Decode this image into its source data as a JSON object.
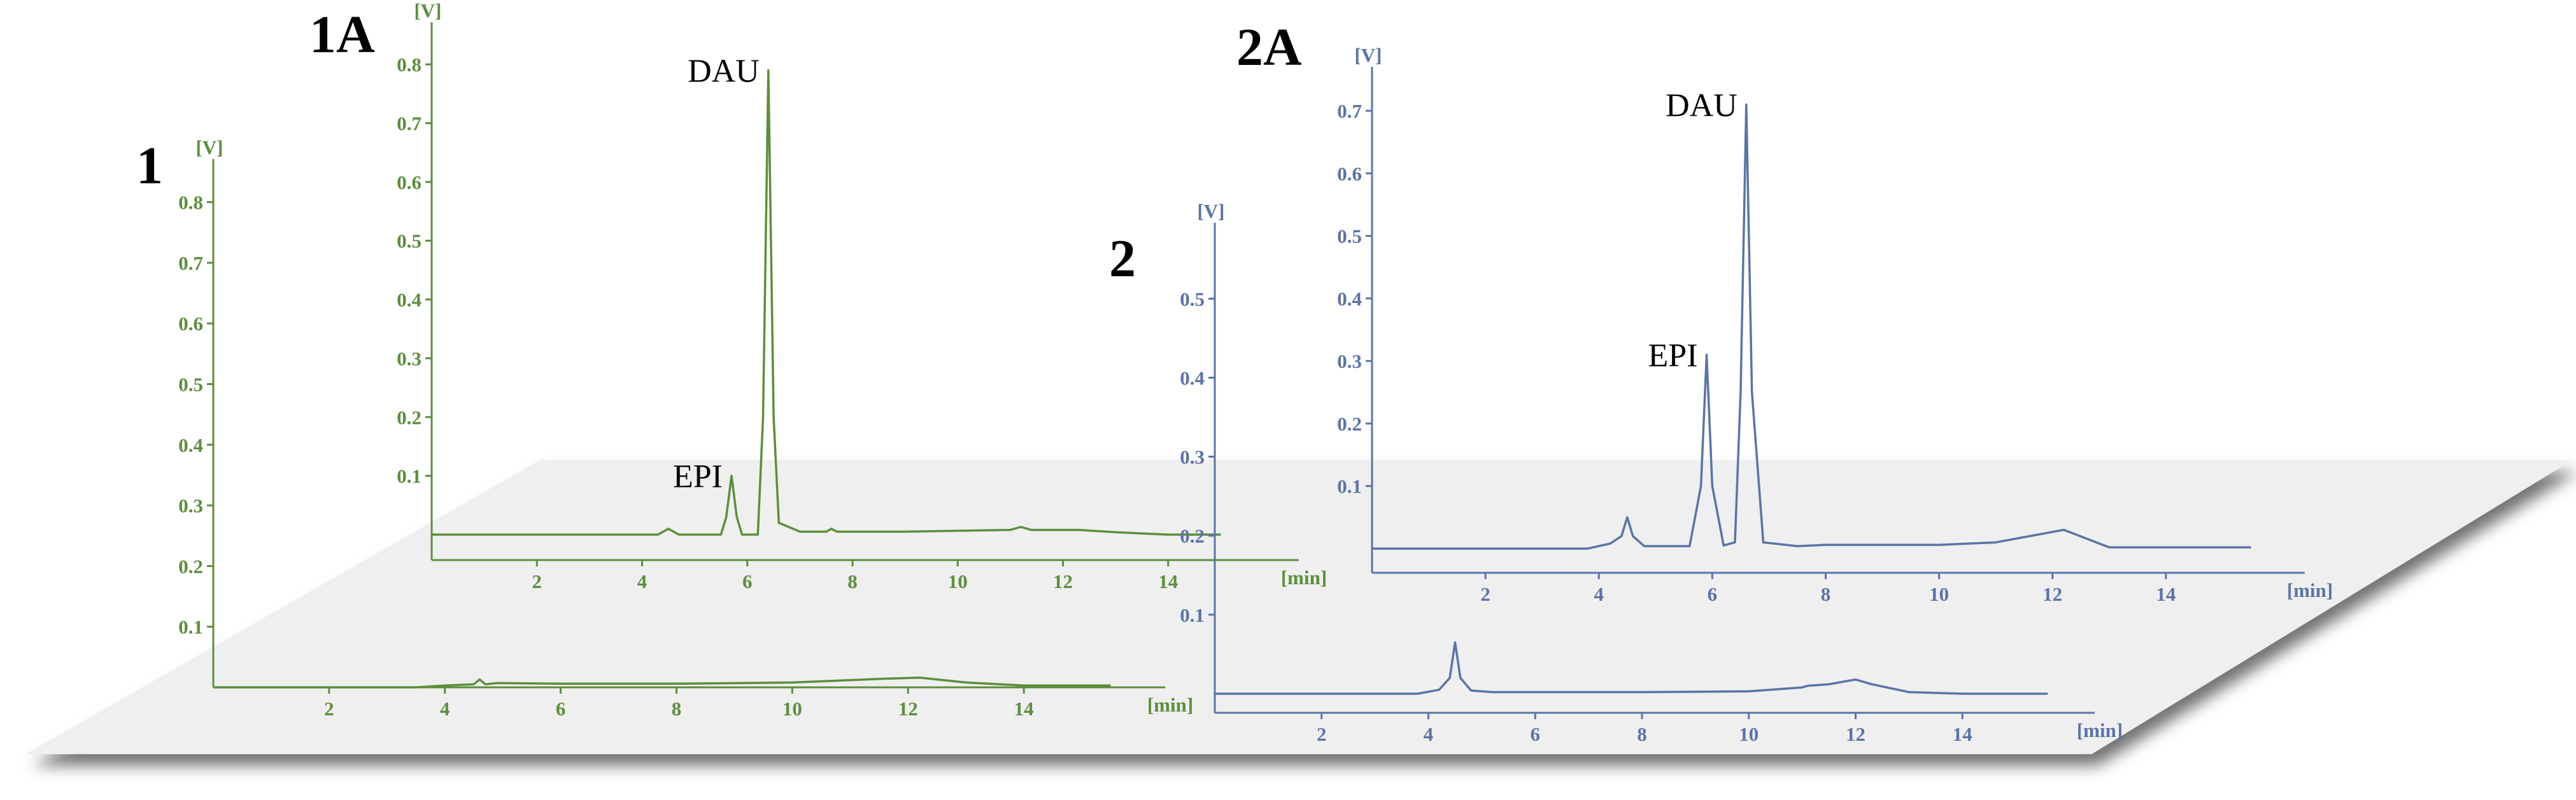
{
  "chart_data": [
    {
      "panel": "1",
      "type": "line",
      "color": "#5c8f3c",
      "y_unit": "[V]",
      "x_unit": "[min]",
      "y_ticks": [
        "0.1",
        "0.2",
        "0.3",
        "0.4",
        "0.5",
        "0.6",
        "0.7",
        "0.8"
      ],
      "x_ticks": [
        "2",
        "4",
        "6",
        "8",
        "10",
        "12",
        "14"
      ],
      "xlim": [
        0,
        16
      ],
      "ylim": [
        0,
        0.85
      ],
      "series": [
        {
          "x": [
            0,
            3.5,
            4.0,
            4.5,
            4.6,
            4.7,
            4.9,
            6,
            8,
            10,
            11.5,
            12.2,
            13,
            14,
            15.5
          ],
          "y": [
            0,
            0,
            0.003,
            0.005,
            0.013,
            0.005,
            0.007,
            0.006,
            0.006,
            0.008,
            0.014,
            0.016,
            0.008,
            0.003,
            0.003
          ]
        }
      ]
    },
    {
      "panel": "1A",
      "type": "line",
      "color": "#5c8f3c",
      "y_unit": "[V]",
      "x_unit": "[min]",
      "y_ticks": [
        "0.1",
        "0.2",
        "0.3",
        "0.4",
        "0.5",
        "0.6",
        "0.7",
        "0.8"
      ],
      "x_ticks": [
        "2",
        "4",
        "6",
        "8",
        "10",
        "12",
        "14"
      ],
      "xlim": [
        0,
        16
      ],
      "ylim": [
        0,
        0.85
      ],
      "annotations": [
        {
          "text": "DAU",
          "x": 6.4,
          "y": 0.79
        },
        {
          "text": "EPI",
          "x": 5.7,
          "y": 0.1
        }
      ],
      "series": [
        {
          "x": [
            0,
            4.3,
            4.5,
            4.7,
            5.5,
            5.6,
            5.7,
            5.8,
            5.9,
            6.2,
            6.3,
            6.4,
            6.5,
            6.6,
            7.0,
            7.5,
            7.6,
            7.7,
            9,
            11.0,
            11.2,
            11.4,
            12.3,
            13,
            14,
            15
          ],
          "y": [
            0,
            0,
            0.01,
            0,
            0,
            0.03,
            0.1,
            0.03,
            0,
            0,
            0.2,
            0.79,
            0.2,
            0.02,
            0.005,
            0.005,
            0.01,
            0.005,
            0.005,
            0.008,
            0.013,
            0.008,
            0.008,
            0.004,
            0,
            0
          ]
        }
      ]
    },
    {
      "panel": "2",
      "type": "line",
      "color": "#5a74a8",
      "y_unit": "[V]",
      "x_unit": "[min]",
      "y_ticks": [
        "0.1",
        "0.2",
        "0.3",
        "0.4",
        "0.5"
      ],
      "x_ticks": [
        "2",
        "4",
        "6",
        "8",
        "10",
        "12",
        "14"
      ],
      "xlim": [
        0,
        16
      ],
      "ylim": [
        0,
        0.58
      ],
      "series": [
        {
          "x": [
            0,
            3.8,
            4.2,
            4.4,
            4.5,
            4.6,
            4.8,
            5.2,
            8,
            10,
            11.0,
            11.1,
            11.5,
            12.0,
            12.3,
            13,
            14,
            15.6
          ],
          "y": [
            0,
            0,
            0.005,
            0.02,
            0.065,
            0.02,
            0.004,
            0.002,
            0.002,
            0.003,
            0.008,
            0.01,
            0.012,
            0.018,
            0.012,
            0.002,
            0,
            0
          ]
        }
      ]
    },
    {
      "panel": "2A",
      "type": "line",
      "color": "#5a74a8",
      "y_unit": "[V]",
      "x_unit": "[min]",
      "y_ticks": [
        "0.1",
        "0.2",
        "0.3",
        "0.4",
        "0.5",
        "0.6",
        "0.7"
      ],
      "x_ticks": [
        "2",
        "4",
        "6",
        "8",
        "10",
        "12",
        "14"
      ],
      "xlim": [
        0,
        16
      ],
      "ylim": [
        0,
        0.75
      ],
      "annotations": [
        {
          "text": "DAU",
          "x": 6.6,
          "y": 0.71
        },
        {
          "text": "EPI",
          "x": 5.9,
          "y": 0.31
        }
      ],
      "series": [
        {
          "x": [
            0,
            3.8,
            4.2,
            4.4,
            4.5,
            4.6,
            4.8,
            5.6,
            5.8,
            5.9,
            6.0,
            6.2,
            6.4,
            6.5,
            6.6,
            6.7,
            6.9,
            7.5,
            8,
            10,
            11,
            12.2,
            13,
            15.5
          ],
          "y": [
            0,
            0,
            0.008,
            0.02,
            0.05,
            0.02,
            0.004,
            0.004,
            0.1,
            0.31,
            0.1,
            0.005,
            0.01,
            0.25,
            0.71,
            0.25,
            0.01,
            0.004,
            0.006,
            0.006,
            0.01,
            0.03,
            0.002,
            0.002
          ]
        }
      ]
    }
  ],
  "panels": {
    "p1": {
      "label": "1"
    },
    "p1a": {
      "label": "1A"
    },
    "p2": {
      "label": "2"
    },
    "p2a": {
      "label": "2A"
    }
  }
}
